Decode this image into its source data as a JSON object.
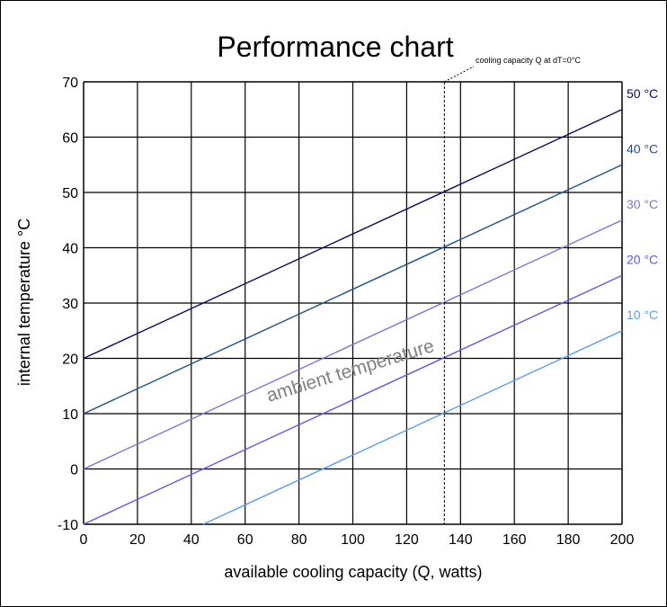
{
  "chart_data": {
    "type": "line",
    "title": "Performance chart",
    "xlabel": "available cooling capacity (Q, watts)",
    "ylabel": "internal temperature °C",
    "xlim": [
      0,
      200
    ],
    "ylim": [
      -10,
      70
    ],
    "x_ticks": [
      "0",
      "20",
      "40",
      "60",
      "80",
      "100",
      "120",
      "140",
      "160",
      "180",
      "200"
    ],
    "y_ticks": [
      "-10",
      "0",
      "10",
      "20",
      "30",
      "40",
      "50",
      "60",
      "70"
    ],
    "grid": true,
    "series": [
      {
        "name": "50 °C",
        "color": "#0a0a5a",
        "x": [
          0,
          200
        ],
        "y": [
          20,
          65
        ]
      },
      {
        "name": "40 °C",
        "color": "#1f4e8c",
        "x": [
          0,
          200
        ],
        "y": [
          10,
          55
        ]
      },
      {
        "name": "30 °C",
        "color": "#7b74d8",
        "x": [
          0,
          200
        ],
        "y": [
          0,
          45
        ]
      },
      {
        "name": "20 °C",
        "color": "#5a5ae0",
        "x": [
          0,
          200
        ],
        "y": [
          -10,
          35
        ]
      },
      {
        "name": "10 °C",
        "color": "#5b9bf0",
        "x": [
          44.4,
          200
        ],
        "y": [
          -10,
          25
        ]
      }
    ],
    "annotations": [
      {
        "text": "cooling capacity Q at dT=0°C",
        "x": 134
      },
      {
        "text": "ambient temperature"
      }
    ]
  }
}
